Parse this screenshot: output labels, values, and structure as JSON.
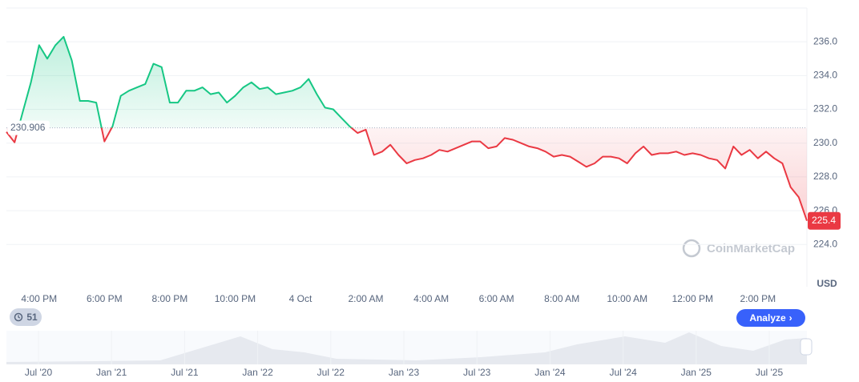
{
  "chart_data": {
    "type": "line",
    "categories": [
      null,
      null,
      null,
      null,
      "4:00 PM",
      null,
      null,
      null,
      null,
      null,
      null,
      null,
      "6:00 PM",
      null,
      null,
      null,
      null,
      null,
      null,
      null,
      "8:00 PM",
      null,
      null,
      null,
      null,
      null,
      null,
      null,
      "10:00 PM",
      null,
      null,
      null,
      null,
      null,
      null,
      null,
      "4 Oct",
      null,
      null,
      null,
      null,
      null,
      null,
      null,
      "2:00 AM",
      null,
      null,
      null,
      null,
      null,
      null,
      null,
      "4:00 AM",
      null,
      null,
      null,
      null,
      null,
      null,
      null,
      "6:00 AM",
      null,
      null,
      null,
      null,
      null,
      null,
      null,
      "8:00 AM",
      null,
      null,
      null,
      null,
      null,
      null,
      null,
      "10:00 AM",
      null,
      null,
      null,
      null,
      null,
      null,
      null,
      "12:00 PM",
      null,
      null,
      null,
      null,
      null,
      null,
      null,
      "2:00 PM",
      null,
      null,
      null,
      null,
      null,
      null
    ],
    "values": [
      230.66,
      230.05,
      231.84,
      233.6,
      235.8,
      235.0,
      235.8,
      236.3,
      234.9,
      232.5,
      232.5,
      232.4,
      230.1,
      231.0,
      232.8,
      233.1,
      233.3,
      233.5,
      234.7,
      234.5,
      232.4,
      232.4,
      233.1,
      233.1,
      233.3,
      232.9,
      233.0,
      232.4,
      232.8,
      233.3,
      233.6,
      233.2,
      233.3,
      232.9,
      233.0,
      233.1,
      233.3,
      233.8,
      232.9,
      232.1,
      232.0,
      231.5,
      231.0,
      230.6,
      230.8,
      229.3,
      229.5,
      229.9,
      229.3,
      228.8,
      229.0,
      229.1,
      229.3,
      229.6,
      229.5,
      229.7,
      229.9,
      230.1,
      230.1,
      229.7,
      229.8,
      230.3,
      230.2,
      230.0,
      229.8,
      229.7,
      229.5,
      229.2,
      229.3,
      229.2,
      228.9,
      228.6,
      228.8,
      229.2,
      229.2,
      229.1,
      228.8,
      229.4,
      229.8,
      229.3,
      229.4,
      229.4,
      229.5,
      229.3,
      229.4,
      229.3,
      229.1,
      229.0,
      228.5,
      229.8,
      229.3,
      229.6,
      229.1,
      229.5,
      229.1,
      228.8,
      227.4,
      226.8,
      225.4
    ],
    "reference_value": 230.906,
    "ylim": [
      221.5,
      238
    ],
    "yticks": [
      {
        "value": 224,
        "label": "224.0"
      },
      {
        "value": 226,
        "label": "226.0"
      },
      {
        "value": 228,
        "label": "228.0"
      },
      {
        "value": 230,
        "label": "230.0"
      },
      {
        "value": 232,
        "label": "232.0"
      },
      {
        "value": 234,
        "label": "234.0"
      },
      {
        "value": 236,
        "label": "236.0"
      }
    ],
    "y_unit": "USD",
    "grid": true,
    "color_up": "#16c784",
    "color_down": "#ea3943"
  },
  "ui": {
    "watermark": "CoinMarketCap",
    "history_count": "51",
    "analyze_button": "Analyze",
    "navigator_labels": [
      "Jul '20",
      "Jan '21",
      "Jul '21",
      "Jan '22",
      "Jul '22",
      "Jan '23",
      "Jul '23",
      "Jan '24",
      "Jul '24",
      "Jan '25",
      "Jul '25"
    ]
  }
}
